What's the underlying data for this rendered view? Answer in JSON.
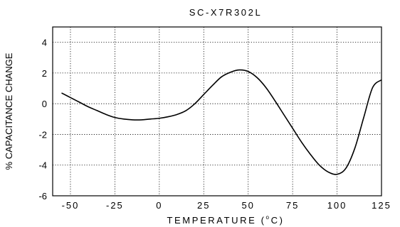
{
  "chart_data": {
    "type": "line",
    "title": "SC-X7R302L",
    "xlabel_prefix": "TEMPERATURE (",
    "xlabel_degree": "o",
    "xlabel_suffix": "C)",
    "ylabel": "% CAPACITANCE CHANGE",
    "xlim": [
      -60,
      125
    ],
    "ylim": [
      -6,
      5
    ],
    "xticks": [
      -50,
      -25,
      0,
      25,
      50,
      75,
      100,
      125
    ],
    "xtick_labels": [
      "-50",
      "-25",
      "0",
      "25",
      "50",
      "75",
      "100",
      "125"
    ],
    "yticks": [
      -6,
      -4,
      -2,
      0,
      2,
      4
    ],
    "ytick_labels": [
      "-6",
      "-4",
      "-2",
      "0",
      "2",
      "4"
    ],
    "grid": true,
    "series": [
      {
        "x": [
          -55,
          -50,
          -45,
          -40,
          -35,
          -30,
          -25,
          -20,
          -15,
          -10,
          -5,
          0,
          5,
          10,
          15,
          20,
          25,
          30,
          35,
          40,
          45,
          50,
          55,
          60,
          65,
          70,
          75,
          80,
          85,
          90,
          95,
          100,
          105,
          110,
          115,
          120,
          125
        ],
        "y": [
          0.7,
          0.4,
          0.1,
          -0.2,
          -0.45,
          -0.7,
          -0.9,
          -1.0,
          -1.05,
          -1.05,
          -1.0,
          -0.95,
          -0.85,
          -0.7,
          -0.45,
          0.0,
          0.6,
          1.2,
          1.75,
          2.05,
          2.2,
          2.1,
          1.7,
          1.05,
          0.2,
          -0.7,
          -1.6,
          -2.5,
          -3.3,
          -4.0,
          -4.45,
          -4.6,
          -4.2,
          -2.9,
          -0.9,
          1.05,
          1.55
        ]
      }
    ]
  }
}
